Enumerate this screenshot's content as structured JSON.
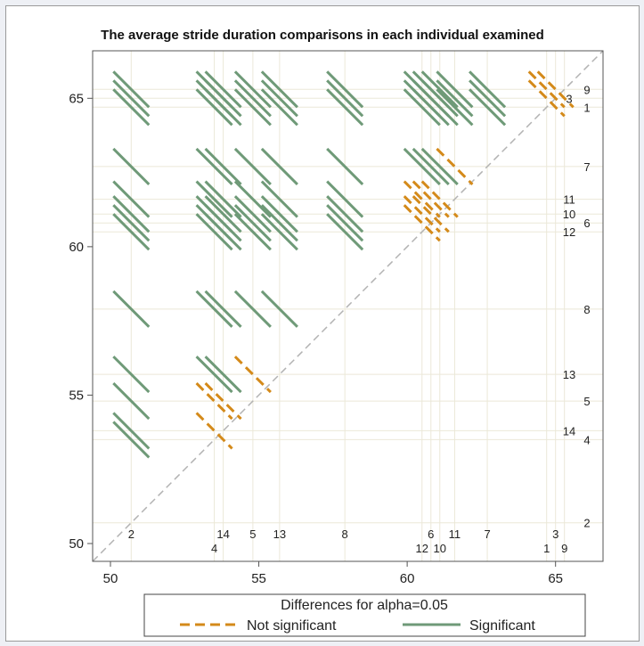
{
  "chart_data": {
    "type": "diffogram",
    "title": "The average stride duration comparisons in each individual examined",
    "xlim": [
      49.4,
      66.6
    ],
    "ylim": [
      49.4,
      66.6
    ],
    "x_ticks": [
      50,
      55,
      60,
      65
    ],
    "y_ticks": [
      50,
      55,
      60,
      65
    ],
    "legend_title": "Differences for alpha=0.05",
    "legend_placement": "bottom",
    "legend": [
      {
        "name": "Not significant",
        "style": "dashed",
        "color": "#d48a1a"
      },
      {
        "name": "Significant",
        "style": "solid",
        "color": "#6f9a78"
      }
    ],
    "reference_line": "diagonal y=x (dashed gray)",
    "individuals": [
      {
        "id": "1",
        "mean": 64.7
      },
      {
        "id": "2",
        "mean": 50.7
      },
      {
        "id": "3",
        "mean": 65.0
      },
      {
        "id": "4",
        "mean": 53.5
      },
      {
        "id": "5",
        "mean": 54.8
      },
      {
        "id": "6",
        "mean": 60.8
      },
      {
        "id": "7",
        "mean": 62.7
      },
      {
        "id": "8",
        "mean": 57.9
      },
      {
        "id": "9",
        "mean": 65.3
      },
      {
        "id": "10",
        "mean": 61.1
      },
      {
        "id": "11",
        "mean": 61.6
      },
      {
        "id": "12",
        "mean": 60.5
      },
      {
        "id": "13",
        "mean": 55.7
      },
      {
        "id": "14",
        "mean": 53.8
      }
    ],
    "x_labels": [
      {
        "id": "2",
        "row": "top"
      },
      {
        "id": "14",
        "row": "top"
      },
      {
        "id": "5",
        "row": "top"
      },
      {
        "id": "13",
        "row": "top"
      },
      {
        "id": "8",
        "row": "top"
      },
      {
        "id": "6",
        "row": "top"
      },
      {
        "id": "11",
        "row": "top"
      },
      {
        "id": "7",
        "row": "top"
      },
      {
        "id": "3",
        "row": "top"
      },
      {
        "id": "4",
        "row": "bottom"
      },
      {
        "id": "12",
        "row": "bottom"
      },
      {
        "id": "10",
        "row": "bottom"
      },
      {
        "id": "1",
        "row": "bottom"
      },
      {
        "id": "9",
        "row": "bottom"
      }
    ],
    "y_labels": [
      {
        "id": "9",
        "col": "outer"
      },
      {
        "id": "3",
        "col": "inner"
      },
      {
        "id": "1",
        "col": "outer"
      },
      {
        "id": "7",
        "col": "outer"
      },
      {
        "id": "11",
        "col": "inner"
      },
      {
        "id": "10",
        "col": "inner"
      },
      {
        "id": "6",
        "col": "outer"
      },
      {
        "id": "12",
        "col": "inner"
      },
      {
        "id": "8",
        "col": "outer"
      },
      {
        "id": "13",
        "col": "inner"
      },
      {
        "id": "5",
        "col": "outer"
      },
      {
        "id": "14",
        "col": "inner"
      },
      {
        "id": "4",
        "col": "outer"
      },
      {
        "id": "2",
        "col": "outer"
      }
    ],
    "interval_half_width": 0.6
  }
}
